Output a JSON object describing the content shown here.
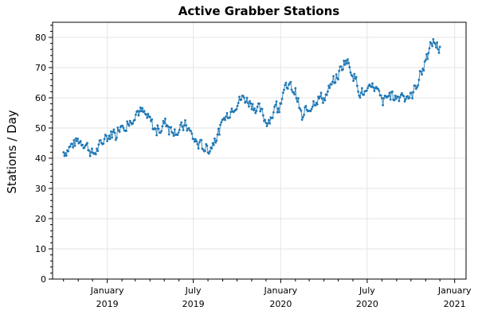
{
  "chart_data": {
    "type": "line",
    "title": "Active Grabber Stations",
    "ylabel": "Stations / Day",
    "xlabel": "",
    "ylim": [
      0,
      85
    ],
    "yticks": [
      0,
      10,
      20,
      30,
      40,
      50,
      60,
      70,
      80
    ],
    "xlim": [
      "2018-09-08",
      "2021-01-25"
    ],
    "xticks": [
      {
        "date": "2019-01-01",
        "month": "January",
        "year": "2019"
      },
      {
        "date": "2019-07-01",
        "month": "July",
        "year": "2019"
      },
      {
        "date": "2020-01-01",
        "month": "January",
        "year": "2020"
      },
      {
        "date": "2020-07-01",
        "month": "July",
        "year": "2020"
      },
      {
        "date": "2021-01-01",
        "month": "January",
        "year": "2021"
      }
    ],
    "grid": true,
    "series_color": "#1f77b4",
    "series": [
      {
        "x": [
          "2018-10-01",
          "2018-10-15",
          "2018-11-01",
          "2018-11-15",
          "2018-12-01",
          "2018-12-15",
          "2019-01-01",
          "2019-01-15",
          "2019-02-01",
          "2019-02-15",
          "2019-03-01",
          "2019-03-15",
          "2019-04-01",
          "2019-04-15",
          "2019-05-01",
          "2019-05-15",
          "2019-06-01",
          "2019-06-15",
          "2019-07-01",
          "2019-07-15",
          "2019-08-01",
          "2019-08-15",
          "2019-09-01",
          "2019-09-15",
          "2019-10-01",
          "2019-10-15",
          "2019-11-01",
          "2019-11-15",
          "2019-12-01",
          "2019-12-15",
          "2020-01-01",
          "2020-01-15",
          "2020-02-01",
          "2020-02-15",
          "2020-03-01",
          "2020-03-15",
          "2020-04-01",
          "2020-04-15",
          "2020-05-01",
          "2020-05-15",
          "2020-06-01",
          "2020-06-15",
          "2020-07-01",
          "2020-07-15",
          "2020-08-01",
          "2020-08-15",
          "2020-09-01",
          "2020-09-15",
          "2020-10-01",
          "2020-10-15",
          "2020-11-01",
          "2020-11-15",
          "2020-12-01"
        ],
        "values": [
          42,
          44,
          46,
          45,
          41,
          44,
          47,
          49,
          52,
          51,
          56,
          55,
          52,
          48,
          52,
          50,
          49,
          51,
          46,
          44,
          43,
          46,
          52,
          56,
          59,
          60,
          58,
          56,
          52,
          55,
          60,
          64,
          62,
          52,
          57,
          60,
          60,
          64,
          68,
          73,
          68,
          62,
          61,
          64,
          58,
          61,
          60,
          62,
          60,
          66,
          72,
          79,
          76
        ]
      }
    ]
  }
}
